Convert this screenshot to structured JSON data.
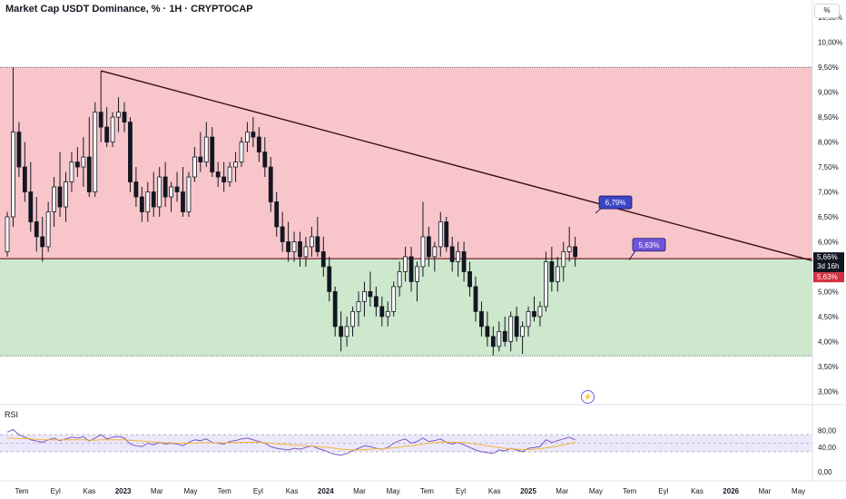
{
  "title": "Market Cap USDT Dominance, % · 1H · CRYPTOCAP",
  "unit_label": "%",
  "bolt_icon": "lightning-icon",
  "rsi_label": "RSI",
  "chart_data": {
    "type": "candlestick",
    "price_axis": {
      "min": 2.75,
      "max": 10.85,
      "ticks": [
        "10,50%",
        "10,00%",
        "9,50%",
        "9,00%",
        "8,50%",
        "8,00%",
        "7,50%",
        "7,00%",
        "6,50%",
        "6,00%",
        "5,50%",
        "5,00%",
        "4,50%",
        "4,00%",
        "3,50%",
        "3,00%"
      ],
      "tick_values": [
        10.5,
        10.0,
        9.5,
        9.0,
        8.5,
        8.0,
        7.5,
        7.0,
        6.5,
        6.0,
        5.5,
        5.0,
        4.5,
        4.0,
        3.5,
        3.0
      ]
    },
    "time_axis": {
      "labels": [
        "Tem",
        "Eyl",
        "Kas",
        "2023",
        "Mar",
        "May",
        "Tem",
        "Eyl",
        "Kas",
        "2024",
        "Mar",
        "May",
        "Tem",
        "Eyl",
        "Kas",
        "2025",
        "Mar",
        "May",
        "Tem",
        "Eyl",
        "Kas",
        "2026",
        "Mar",
        "May"
      ],
      "bold": [
        false,
        false,
        false,
        true,
        false,
        false,
        false,
        false,
        false,
        true,
        false,
        false,
        false,
        false,
        false,
        true,
        false,
        false,
        false,
        false,
        false,
        true,
        false,
        false
      ]
    },
    "zones": {
      "resistance_zone": {
        "from": 5.66,
        "to": 9.5,
        "color": "#f8c6ca"
      },
      "support_zone": {
        "from": 3.71,
        "to": 5.66,
        "color": "#cde8cd"
      }
    },
    "horizontal_levels": [
      9.5,
      5.66,
      3.71
    ],
    "trendline": {
      "start": {
        "x": 0.0,
        "y": 9.43
      },
      "end": {
        "x": 1.0,
        "y": 5.62
      }
    },
    "trendline_time": {
      "start_label": "Kas",
      "start_value": 9.43,
      "end_value": 5.62
    },
    "callouts": [
      {
        "text": "6,79%",
        "value": 6.79
      },
      {
        "text": "5,63%",
        "value": 5.63
      }
    ],
    "current_price": {
      "text": "5,66%",
      "countdown": "3d 16h",
      "value": 5.66
    },
    "marker_price": {
      "text": "5,63%",
      "value": 5.63
    },
    "candles": [
      [
        5.8,
        6.6,
        5.7,
        6.5
      ],
      [
        6.5,
        9.5,
        6.3,
        8.2
      ],
      [
        8.2,
        8.4,
        7.3,
        7.5
      ],
      [
        7.5,
        8.0,
        6.8,
        7.0
      ],
      [
        7.0,
        7.6,
        6.2,
        6.4
      ],
      [
        6.4,
        6.9,
        5.8,
        6.1
      ],
      [
        6.1,
        6.5,
        5.6,
        5.9
      ],
      [
        5.9,
        6.8,
        5.8,
        6.6
      ],
      [
        6.6,
        7.3,
        6.3,
        7.1
      ],
      [
        7.1,
        7.8,
        6.5,
        6.7
      ],
      [
        6.7,
        7.4,
        6.4,
        7.2
      ],
      [
        7.2,
        7.8,
        7.0,
        7.6
      ],
      [
        7.6,
        7.9,
        7.3,
        7.5
      ],
      [
        7.5,
        8.1,
        7.1,
        7.7
      ],
      [
        7.7,
        8.5,
        6.9,
        7.0
      ],
      [
        7.0,
        8.8,
        6.9,
        8.6
      ],
      [
        8.6,
        9.43,
        8.0,
        8.3
      ],
      [
        8.3,
        8.7,
        7.9,
        8.0
      ],
      [
        8.0,
        8.6,
        7.9,
        8.5
      ],
      [
        8.5,
        8.9,
        8.2,
        8.6
      ],
      [
        8.6,
        8.8,
        8.2,
        8.4
      ],
      [
        8.4,
        8.5,
        7.0,
        7.2
      ],
      [
        7.2,
        7.5,
        6.7,
        6.9
      ],
      [
        6.9,
        7.1,
        6.4,
        6.6
      ],
      [
        6.6,
        7.2,
        6.4,
        7.0
      ],
      [
        7.0,
        7.4,
        6.5,
        6.7
      ],
      [
        6.7,
        7.5,
        6.5,
        7.3
      ],
      [
        7.3,
        7.6,
        6.7,
        6.9
      ],
      [
        6.9,
        7.2,
        6.6,
        7.1
      ],
      [
        7.1,
        7.4,
        6.8,
        7.0
      ],
      [
        7.0,
        7.5,
        6.5,
        6.6
      ],
      [
        6.6,
        7.4,
        6.5,
        7.3
      ],
      [
        7.3,
        7.9,
        7.2,
        7.7
      ],
      [
        7.7,
        8.2,
        7.4,
        7.6
      ],
      [
        7.6,
        8.4,
        7.5,
        8.1
      ],
      [
        8.1,
        8.3,
        7.3,
        7.4
      ],
      [
        7.4,
        7.6,
        7.1,
        7.3
      ],
      [
        7.3,
        7.6,
        7.0,
        7.2
      ],
      [
        7.2,
        7.6,
        7.1,
        7.5
      ],
      [
        7.5,
        7.8,
        7.2,
        7.6
      ],
      [
        7.6,
        8.1,
        7.5,
        8.0
      ],
      [
        8.0,
        8.4,
        7.8,
        8.2
      ],
      [
        8.2,
        8.5,
        7.9,
        8.1
      ],
      [
        8.1,
        8.3,
        7.6,
        7.8
      ],
      [
        7.8,
        8.1,
        7.3,
        7.5
      ],
      [
        7.5,
        7.7,
        6.6,
        6.8
      ],
      [
        6.8,
        7.0,
        6.1,
        6.3
      ],
      [
        6.3,
        6.6,
        5.8,
        6.0
      ],
      [
        6.0,
        6.4,
        5.6,
        5.8
      ],
      [
        5.8,
        6.2,
        5.6,
        6.0
      ],
      [
        6.0,
        6.2,
        5.5,
        5.7
      ],
      [
        5.7,
        6.1,
        5.5,
        5.9
      ],
      [
        5.9,
        6.3,
        5.7,
        6.1
      ],
      [
        6.1,
        6.5,
        5.7,
        5.8
      ],
      [
        5.8,
        6.1,
        5.3,
        5.5
      ],
      [
        5.5,
        5.7,
        4.8,
        5.0
      ],
      [
        5.0,
        5.1,
        4.1,
        4.3
      ],
      [
        4.3,
        4.6,
        3.8,
        4.1
      ],
      [
        4.1,
        4.5,
        3.9,
        4.3
      ],
      [
        4.3,
        4.7,
        4.1,
        4.6
      ],
      [
        4.6,
        5.0,
        4.3,
        4.8
      ],
      [
        4.8,
        5.2,
        4.5,
        5.0
      ],
      [
        5.0,
        5.4,
        4.7,
        4.9
      ],
      [
        4.9,
        5.1,
        4.5,
        4.7
      ],
      [
        4.7,
        4.9,
        4.3,
        4.5
      ],
      [
        4.5,
        4.8,
        4.3,
        4.6
      ],
      [
        4.6,
        5.2,
        4.5,
        5.1
      ],
      [
        5.1,
        5.6,
        4.9,
        5.4
      ],
      [
        5.4,
        5.9,
        5.2,
        5.7
      ],
      [
        5.7,
        5.9,
        5.0,
        5.2
      ],
      [
        5.2,
        5.6,
        4.8,
        5.5
      ],
      [
        5.5,
        6.8,
        5.3,
        6.1
      ],
      [
        6.1,
        6.3,
        5.5,
        5.7
      ],
      [
        5.7,
        6.0,
        5.4,
        5.9
      ],
      [
        5.9,
        6.6,
        5.7,
        6.4
      ],
      [
        6.4,
        6.5,
        5.8,
        5.9
      ],
      [
        5.9,
        6.1,
        5.4,
        5.6
      ],
      [
        5.6,
        6.0,
        5.3,
        5.8
      ],
      [
        5.8,
        6.0,
        5.2,
        5.4
      ],
      [
        5.4,
        5.6,
        4.9,
        5.1
      ],
      [
        5.1,
        5.3,
        4.4,
        4.6
      ],
      [
        4.6,
        4.8,
        4.1,
        4.3
      ],
      [
        4.3,
        4.6,
        3.9,
        4.1
      ],
      [
        4.1,
        4.3,
        3.72,
        3.9
      ],
      [
        3.9,
        4.4,
        3.8,
        4.2
      ],
      [
        4.2,
        4.5,
        3.9,
        4.0
      ],
      [
        4.0,
        4.6,
        3.8,
        4.5
      ],
      [
        4.5,
        4.7,
        4.0,
        4.1
      ],
      [
        4.1,
        4.4,
        3.75,
        4.3
      ],
      [
        4.3,
        4.7,
        4.1,
        4.6
      ],
      [
        4.6,
        4.9,
        4.4,
        4.5
      ],
      [
        4.5,
        4.8,
        4.3,
        4.7
      ],
      [
        4.7,
        5.8,
        4.6,
        5.6
      ],
      [
        5.6,
        5.9,
        5.0,
        5.2
      ],
      [
        5.2,
        5.7,
        5.0,
        5.5
      ],
      [
        5.5,
        6.0,
        5.2,
        5.8
      ],
      [
        5.8,
        6.3,
        5.6,
        5.9
      ],
      [
        5.9,
        6.1,
        5.5,
        5.7
      ]
    ],
    "rsi": {
      "ylim": [
        0,
        100
      ],
      "ticks": [
        "80,00",
        "40,00",
        "0,00"
      ],
      "tick_values": [
        80,
        40,
        0
      ],
      "band": [
        30,
        70
      ],
      "values": [
        76,
        82,
        70,
        64,
        58,
        55,
        52,
        58,
        62,
        56,
        60,
        64,
        62,
        65,
        55,
        62,
        70,
        60,
        64,
        66,
        62,
        48,
        44,
        42,
        50,
        46,
        52,
        48,
        50,
        48,
        44,
        52,
        58,
        56,
        60,
        52,
        50,
        48,
        54,
        56,
        60,
        62,
        58,
        54,
        50,
        42,
        38,
        36,
        34,
        38,
        36,
        40,
        44,
        38,
        34,
        28,
        24,
        22,
        26,
        32,
        38,
        44,
        42,
        38,
        36,
        40,
        50,
        56,
        60,
        50,
        54,
        62,
        54,
        56,
        60,
        52,
        48,
        52,
        46,
        40,
        34,
        30,
        28,
        26,
        34,
        32,
        38,
        34,
        30,
        38,
        40,
        42,
        58,
        52,
        56,
        60,
        64,
        58
      ],
      "ma": [
        62,
        62,
        61,
        61,
        60,
        59,
        58,
        58,
        58,
        58,
        58,
        58,
        58,
        58,
        57,
        57,
        58,
        58,
        58,
        58,
        58,
        57,
        56,
        55,
        54,
        53,
        52,
        51,
        51,
        50,
        50,
        50,
        50,
        51,
        51,
        51,
        51,
        51,
        51,
        51,
        52,
        52,
        52,
        52,
        51,
        50,
        49,
        48,
        47,
        46,
        45,
        44,
        43,
        42,
        41,
        40,
        38,
        36,
        35,
        34,
        34,
        35,
        36,
        37,
        37,
        38,
        39,
        41,
        43,
        44,
        46,
        48,
        50,
        51,
        52,
        53,
        52,
        52,
        51,
        50,
        48,
        46,
        44,
        42,
        40,
        38,
        37,
        36,
        35,
        35,
        36,
        37,
        39,
        41,
        43,
        46,
        49,
        52
      ]
    }
  }
}
